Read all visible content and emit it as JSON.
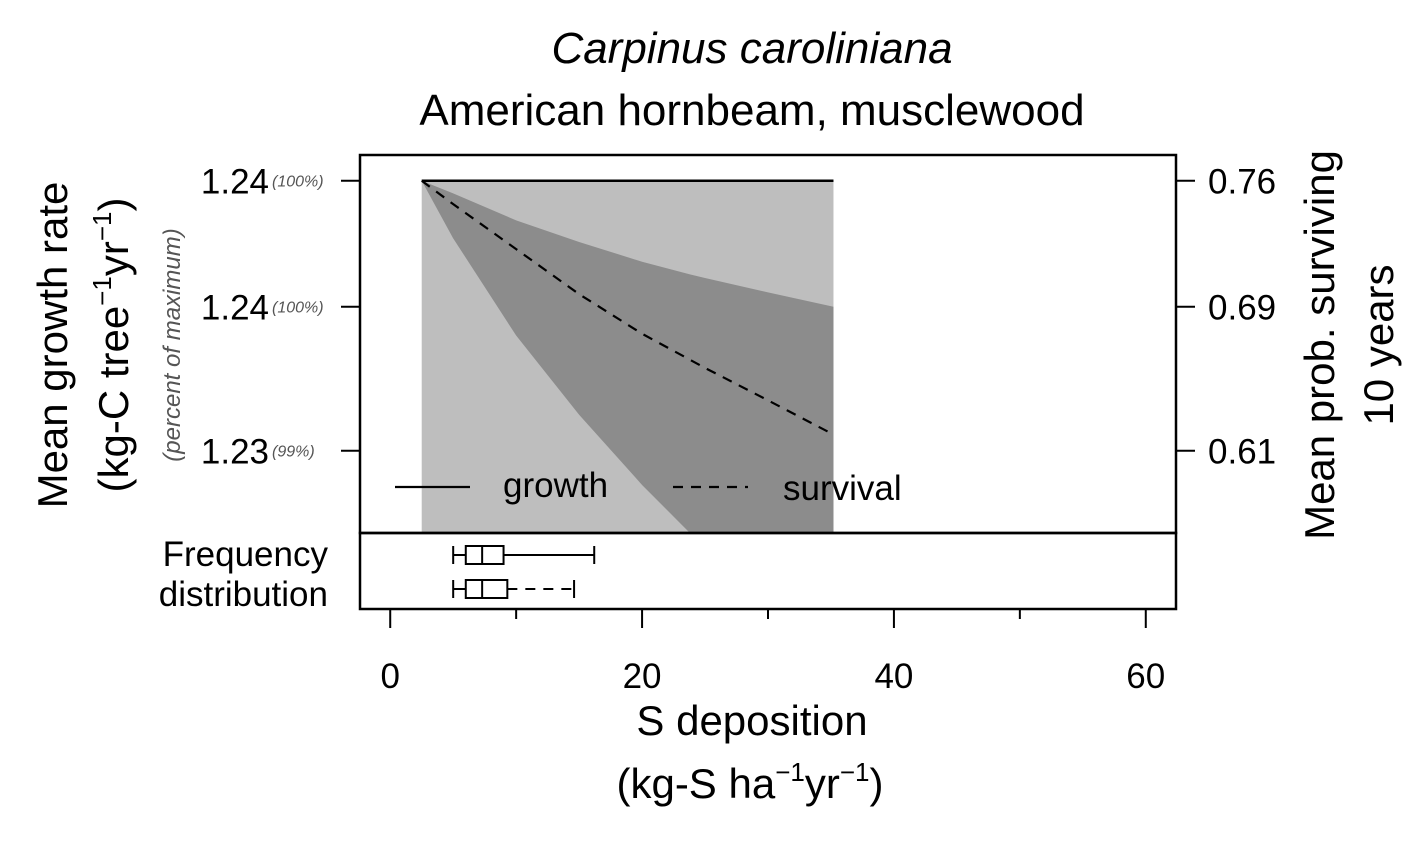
{
  "chart_data": {
    "type": "area",
    "title": "Carpinus caroliniana",
    "subtitle": "American hornbeam, musclewood",
    "xlabel": "S deposition",
    "xlabel_units_prefix": "(kg-S ha",
    "xlabel_units_mid": "yr",
    "xlabel_units_suffix": ")",
    "superscript": "−1",
    "ylabel_left": "Mean growth rate",
    "ylabel_left_units_prefix": "(kg-C tree",
    "ylabel_left_units_mid": "yr",
    "ylabel_left_units_suffix": ")",
    "ylabel_left_secondary": "(percent of maximum)",
    "ylabel_right": "Mean prob. surviving",
    "ylabel_right_line2": "10 years",
    "xlim": [
      -2.4,
      62.4
    ],
    "x_ticks": [
      {
        "value": 0,
        "label": "0"
      },
      {
        "value": 20,
        "label": "20"
      },
      {
        "value": 40,
        "label": "40"
      },
      {
        "value": 60,
        "label": "60"
      }
    ],
    "x_minor_ticks": [
      10,
      30,
      50
    ],
    "left_ticks": [
      {
        "label": "1.24",
        "pct": "(100%)"
      },
      {
        "label": "1.24",
        "pct": "(100%)"
      },
      {
        "label": "1.23",
        "pct": "(99%)"
      }
    ],
    "right_ticks": [
      {
        "value": 0.76,
        "label": "0.76"
      },
      {
        "value": 0.69,
        "label": "0.69"
      },
      {
        "value": 0.61,
        "label": "0.61"
      }
    ],
    "right_ylim": [
      0.5643,
      0.7743
    ],
    "growth": {
      "name": "growth",
      "style": "solid",
      "x": [
        2.5,
        35.2
      ],
      "y_right": [
        0.76,
        0.76
      ],
      "band": {
        "x": [
          2.5,
          35.2
        ],
        "upper": [
          0.76,
          0.76
        ],
        "lower": [
          0.5643,
          0.5643
        ],
        "color": "#bebebe"
      }
    },
    "survival": {
      "name": "survival",
      "style": "dashed",
      "x": [
        2.5,
        5,
        10,
        15,
        20,
        25,
        30,
        35.2
      ],
      "y": [
        0.76,
        0.747,
        0.722,
        0.697,
        0.675,
        0.656,
        0.638,
        0.619
      ],
      "band_x": [
        2.5,
        5,
        10,
        15,
        20,
        23.8,
        25,
        30,
        35.2
      ],
      "band_upper": [
        0.76,
        0.753,
        0.738,
        0.726,
        0.715,
        0.708,
        0.706,
        0.698,
        0.69
      ],
      "band_lower": [
        0.76,
        0.728,
        0.674,
        0.63,
        0.591,
        0.5643,
        0.5643,
        0.5643,
        0.5643
      ],
      "color": "#8c8c8c"
    },
    "legend": [
      {
        "label": "growth",
        "style": "solid"
      },
      {
        "label": "survival",
        "style": "dashed"
      }
    ],
    "legend_position": "bottom-left",
    "frequency_label_line1": "Frequency",
    "frequency_label_line2": "distribution",
    "boxplots": [
      {
        "series": "growth",
        "whisker_style": "solid",
        "min": 5,
        "q1": 6,
        "median": 7.3,
        "q3": 9,
        "max": 16.2
      },
      {
        "series": "survival",
        "whisker_style": "dashed",
        "min": 5,
        "q1": 6,
        "median": 7.3,
        "q3": 9.3,
        "max": 14.6
      }
    ]
  }
}
